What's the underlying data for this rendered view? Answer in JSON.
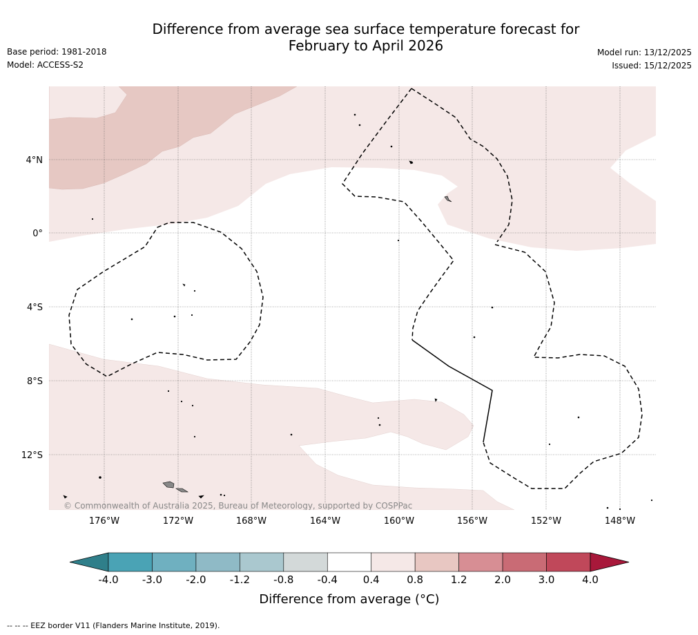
{
  "header": {
    "title_line1": "Difference from average sea surface temperature forecast for",
    "title_line2": "February to April 2026",
    "base_period": "Base period: 1981-2018",
    "model": "Model: ACCESS-S2",
    "model_run": "Model run: 13/12/2025",
    "issued": "Issued: 15/12/2025"
  },
  "map": {
    "lat_labels": [
      "4°N",
      "0°",
      "4°S",
      "8°S",
      "12°S"
    ],
    "lon_labels": [
      "176°W",
      "172°W",
      "168°W",
      "164°W",
      "160°W",
      "156°W",
      "152°W",
      "148°W"
    ],
    "copyright": "© Commonwealth of Australia 2025, Bureau of Meteorology, supported by COSPPac"
  },
  "colorbar": {
    "title": "Difference from average (°C)",
    "ticks": [
      "-4.0",
      "-3.0",
      "-2.0",
      "-1.2",
      "-0.8",
      "-0.4",
      "0.4",
      "0.8",
      "1.2",
      "2.0",
      "3.0",
      "4.0"
    ],
    "colors": {
      "extend_low": "#2f7f8a",
      "bins": [
        "#4aa3b5",
        "#6fb0c0",
        "#8fbac6",
        "#aac8cf",
        "#d3d9d9",
        "#ffffff",
        "#f5e8e7",
        "#e8c7c2",
        "#d78e94",
        "#c96b75",
        "#c0485a"
      ],
      "extend_high": "#a8183a"
    }
  },
  "footnote": "-- -- -- EEZ border V11 (Flanders Marine Institute, 2019)."
}
